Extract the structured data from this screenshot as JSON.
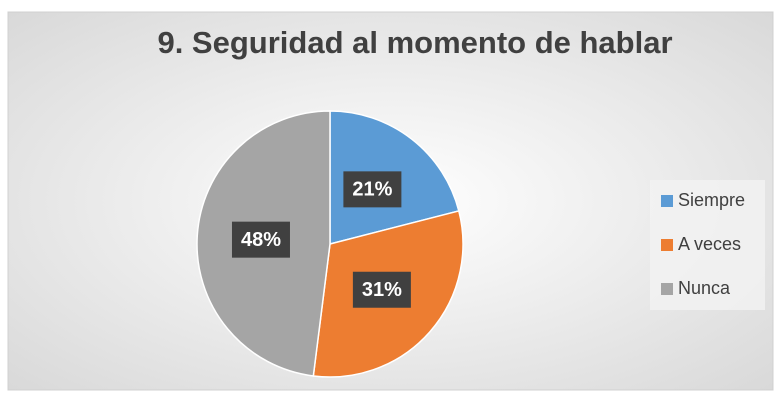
{
  "chart_data": {
    "type": "pie",
    "title": "9. Seguridad al momento de hablar",
    "categories": [
      "Siempre",
      "A veces",
      "Nunca"
    ],
    "values": [
      21,
      31,
      48
    ],
    "value_labels": [
      "21%",
      "31%",
      "48%"
    ],
    "colors": [
      "#5b9bd5",
      "#ed7d31",
      "#a5a5a5"
    ],
    "legend": "right"
  }
}
